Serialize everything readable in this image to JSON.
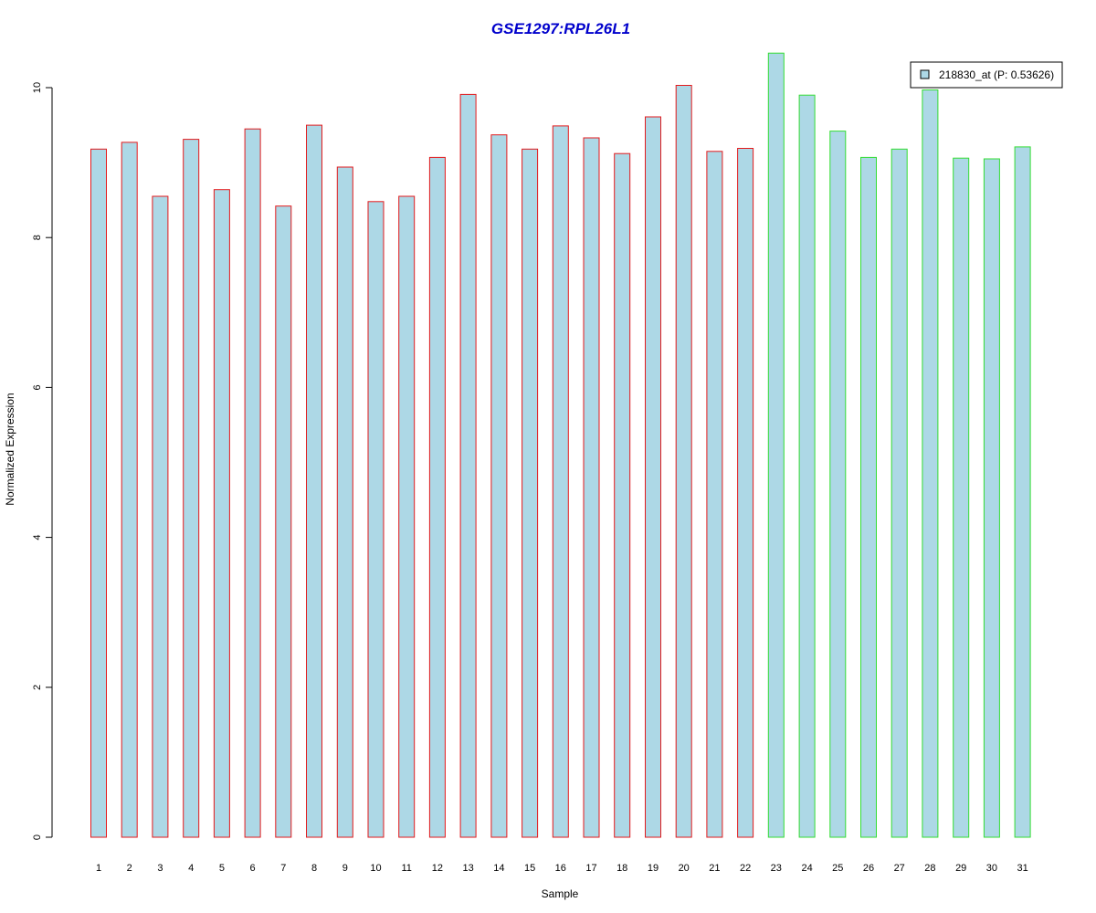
{
  "chart_data": {
    "type": "bar",
    "title": "GSE1297:RPL26L1",
    "xlabel": "Sample",
    "ylabel": "Normalized Expression",
    "ylim": [
      0,
      10
    ],
    "yticks": [
      "0",
      "2",
      "4",
      "6",
      "8",
      "10"
    ],
    "categories": [
      "1",
      "2",
      "3",
      "4",
      "5",
      "6",
      "7",
      "8",
      "9",
      "10",
      "11",
      "12",
      "13",
      "14",
      "15",
      "16",
      "17",
      "18",
      "19",
      "20",
      "21",
      "22",
      "23",
      "24",
      "25",
      "26",
      "27",
      "28",
      "29",
      "30",
      "31"
    ],
    "values": [
      9.18,
      9.27,
      8.55,
      9.31,
      8.64,
      9.45,
      8.42,
      9.5,
      8.94,
      8.48,
      8.55,
      9.07,
      9.91,
      9.37,
      9.18,
      9.49,
      9.33,
      9.12,
      9.61,
      10.03,
      9.15,
      9.19,
      10.46,
      9.9,
      9.42,
      9.07,
      9.18,
      9.97,
      9.06,
      9.05,
      9.21
    ],
    "group_border_colors": [
      "#e31a1c",
      "#e31a1c",
      "#e31a1c",
      "#e31a1c",
      "#e31a1c",
      "#e31a1c",
      "#e31a1c",
      "#e31a1c",
      "#e31a1c",
      "#e31a1c",
      "#e31a1c",
      "#e31a1c",
      "#e31a1c",
      "#e31a1c",
      "#e31a1c",
      "#e31a1c",
      "#e31a1c",
      "#e31a1c",
      "#e31a1c",
      "#e31a1c",
      "#e31a1c",
      "#e31a1c",
      "#33dd33",
      "#33dd33",
      "#33dd33",
      "#33dd33",
      "#33dd33",
      "#33dd33",
      "#33dd33",
      "#33dd33",
      "#33dd33"
    ],
    "bar_fill": "#add8e6",
    "legend": {
      "position": "top-right",
      "entries": [
        {
          "label": "218830_at (P: 0.53626)",
          "color": "#add8e6"
        }
      ]
    },
    "grid": false
  }
}
